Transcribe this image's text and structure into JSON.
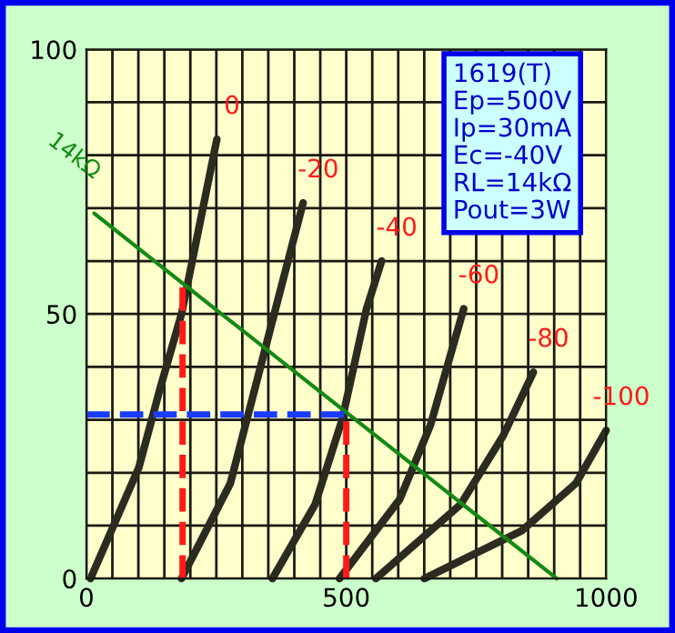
{
  "chart_data": {
    "type": "line",
    "xlim": [
      0,
      1000
    ],
    "ylim": [
      0,
      100
    ],
    "xticks": [
      0,
      {
        "value": 50,
        "label": null
      },
      {
        "value": 100,
        "label": null
      },
      {
        "value": 150,
        "label": null
      },
      {
        "value": 200,
        "label": null
      },
      {
        "value": 250,
        "label": null
      },
      {
        "value": 300,
        "label": null
      },
      {
        "value": 350,
        "label": null
      },
      {
        "value": 400,
        "label": null
      },
      {
        "value": 450,
        "label": null
      },
      500,
      {
        "value": 550,
        "label": null
      },
      {
        "value": 600,
        "label": null
      },
      {
        "value": 650,
        "label": null
      },
      {
        "value": 700,
        "label": null
      },
      {
        "value": 750,
        "label": null
      },
      {
        "value": 800,
        "label": null
      },
      {
        "value": 850,
        "label": null
      },
      {
        "value": 900,
        "label": null
      },
      {
        "value": 950,
        "label": null
      },
      1000
    ],
    "yticks": [
      0,
      {
        "value": 10,
        "label": null
      },
      {
        "value": 20,
        "label": null
      },
      {
        "value": 30,
        "label": null
      },
      {
        "value": 40,
        "label": null
      },
      50,
      {
        "value": 60,
        "label": null
      },
      {
        "value": 70,
        "label": null
      },
      {
        "value": 80,
        "label": null
      },
      {
        "value": 90,
        "label": null
      },
      100
    ],
    "grid": true,
    "marker": "none",
    "series": [
      {
        "name": "0",
        "color": "#2b2b20",
        "x": [
          8,
          101,
          142,
          183,
          251
        ],
        "values": [
          0,
          21,
          36,
          50,
          83
        ]
      },
      {
        "name": "-20",
        "color": "#2b2b20",
        "x": [
          183,
          277,
          364,
          417
        ],
        "values": [
          0,
          18,
          51,
          71
        ]
      },
      {
        "name": "-40",
        "color": "#2b2b20",
        "x": [
          358,
          440,
          492,
          539,
          568
        ],
        "values": [
          0,
          14,
          30,
          51,
          60
        ]
      },
      {
        "name": "-60",
        "color": "#2b2b20",
        "x": [
          487,
          603,
          662,
          726
        ],
        "values": [
          0,
          15,
          29,
          51
        ]
      },
      {
        "name": "-80",
        "color": "#2b2b20",
        "x": [
          557,
          720,
          802,
          860
        ],
        "values": [
          0,
          14,
          27,
          39
        ]
      },
      {
        "name": "-100",
        "color": "#2b2b20",
        "x": [
          650,
          837,
          942,
          1000
        ],
        "values": [
          0,
          9,
          18,
          28
        ]
      },
      {
        "name": "14kΩ",
        "color": "#138a13",
        "x": [
          15,
          905
        ],
        "values": [
          69,
          0
        ]
      },
      {
        "color": "#1a3cff",
        "line_style": "dashed",
        "x": [
          0,
          500
        ],
        "values": [
          31,
          31
        ]
      },
      {
        "color": "#ff1a1a",
        "line_style": "dashed",
        "x": [
          185,
          185
        ],
        "values": [
          0,
          55
        ]
      },
      {
        "color": "#ff1a1a",
        "line_style": "dashed",
        "x": [
          500,
          500
        ],
        "values": [
          0,
          31
        ]
      }
    ],
    "annotations": [
      "1619(T)",
      "Ep=500V",
      "Ip=30mA",
      "Ec=-40V",
      "RL=14kΩ",
      "Pout=3W"
    ]
  }
}
